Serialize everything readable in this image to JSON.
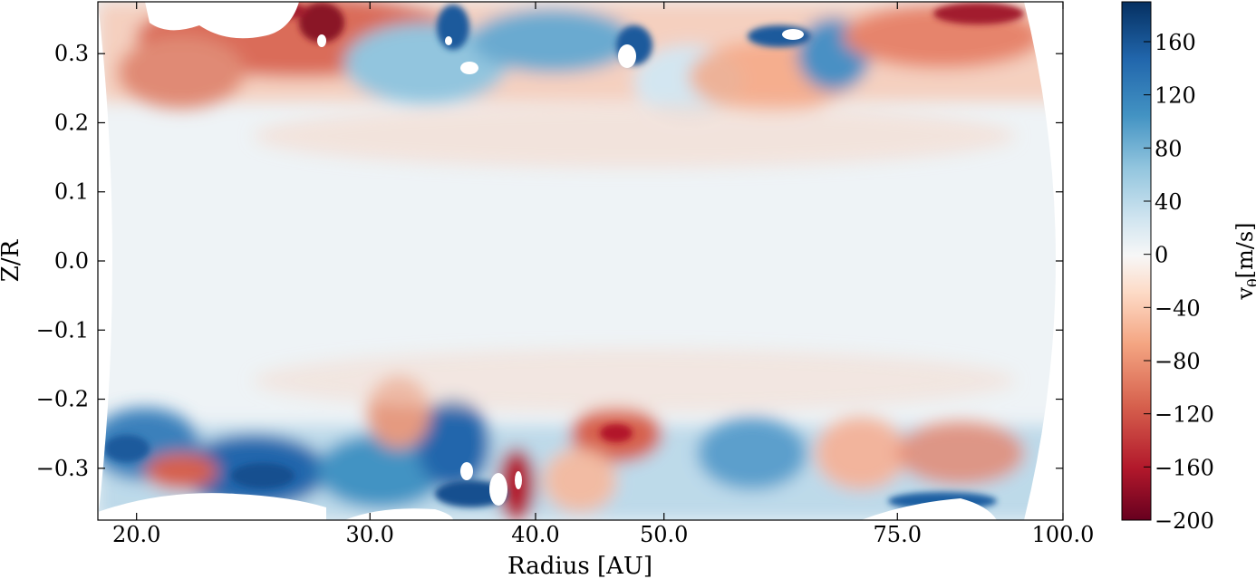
{
  "chart_data": {
    "type": "heatmap",
    "title": "",
    "xlabel": "Radius [AU]",
    "ylabel": "Z/R",
    "x_scale": "log",
    "xlim": [
      18.7,
      100.0
    ],
    "ylim": [
      -0.375,
      0.375
    ],
    "x_ticks": [
      20.0,
      30.0,
      40.0,
      50.0,
      75.0,
      100.0
    ],
    "x_tick_labels": [
      "20.0",
      "30.0",
      "40.0",
      "50.0",
      "75.0",
      "100.0"
    ],
    "y_ticks": [
      0.3,
      0.2,
      0.1,
      0.0,
      -0.1,
      -0.2,
      -0.3
    ],
    "y_tick_labels": [
      "0.3",
      "0.2",
      "0.1",
      "0.0",
      "−0.1",
      "−0.2",
      "−0.3"
    ],
    "colorbar": {
      "label_base": "v",
      "label_sub": "θ",
      "label_unit": "[m/s]",
      "range": [
        -200,
        190
      ],
      "ticks": [
        160,
        120,
        80,
        40,
        0,
        -40,
        -80,
        -120,
        -160,
        -200
      ],
      "tick_labels": [
        "160",
        "120",
        "80",
        "40",
        "0",
        "−40",
        "−80",
        "−120",
        "−160",
        "−200"
      ],
      "colormap": "RdBu",
      "colors": [
        "#67001f",
        "#b2182b",
        "#d6604d",
        "#f4a582",
        "#fddbc7",
        "#f7f7f7",
        "#d1e5f0",
        "#92c5de",
        "#4393c3",
        "#2166ac",
        "#053061"
      ]
    },
    "field_summary": [
      {
        "z_over_r": 0.3,
        "radius_au": 24.0,
        "v_theta": -150
      },
      {
        "z_over_r": 0.33,
        "radius_au": 28.0,
        "v_theta": -190
      },
      {
        "z_over_r": 0.3,
        "radius_au": 35.0,
        "v_theta": 120
      },
      {
        "z_over_r": 0.31,
        "radius_au": 45.0,
        "v_theta": 150
      },
      {
        "z_over_r": 0.3,
        "radius_au": 62.0,
        "v_theta": -100
      },
      {
        "z_over_r": 0.33,
        "radius_au": 88.0,
        "v_theta": -150
      },
      {
        "z_over_r": 0.0,
        "radius_au": 50.0,
        "v_theta": 5
      },
      {
        "z_over_r": -0.28,
        "radius_au": 21.0,
        "v_theta": 150
      },
      {
        "z_over_r": -0.32,
        "radius_au": 27.0,
        "v_theta": 180
      },
      {
        "z_over_r": -0.33,
        "radius_au": 35.0,
        "v_theta": 170
      },
      {
        "z_over_r": -0.32,
        "radius_au": 40.0,
        "v_theta": -180
      },
      {
        "z_over_r": -0.26,
        "radius_au": 45.0,
        "v_theta": -120
      },
      {
        "z_over_r": -0.3,
        "radius_au": 60.0,
        "v_theta": 110
      },
      {
        "z_over_r": -0.33,
        "radius_au": 85.0,
        "v_theta": 170
      }
    ]
  }
}
